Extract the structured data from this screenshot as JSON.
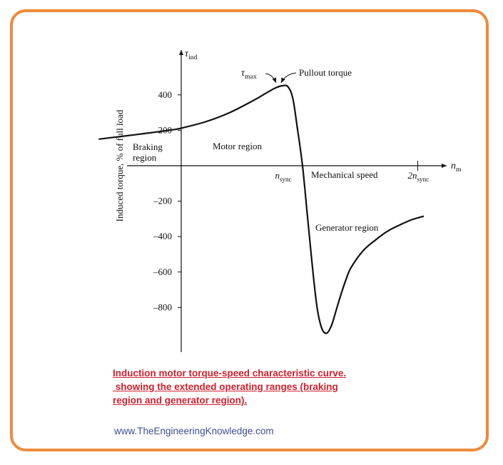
{
  "chart_data": {
    "type": "line",
    "title": "",
    "xlabel": "Mechanical speed",
    "x_axis_symbol": "n",
    "x_axis_symbol_sub": "m",
    "ylabel": "Induced torque, % of full load",
    "y_axis_symbol": "τ",
    "y_axis_symbol_sub": "ind",
    "x_unit": "n_sync",
    "xlim": [
      -0.68,
      2.0
    ],
    "ylim": [
      -1060,
      650
    ],
    "y_ticks": [
      {
        "value": 400,
        "label": "400"
      },
      {
        "value": 200,
        "label": "200"
      },
      {
        "value": -200,
        "label": "–200"
      },
      {
        "value": -400,
        "label": "–400"
      },
      {
        "value": -600,
        "label": "–600"
      },
      {
        "value": -800,
        "label": "–800"
      }
    ],
    "x_ticks": [
      {
        "value": 0.95,
        "label": "n",
        "sub": "sync"
      },
      {
        "value": 1.95,
        "label": "2n",
        "sub": "sync"
      }
    ],
    "series": [
      {
        "x": [
          -0.68,
          -0.5,
          -0.3,
          -0.1,
          0.0,
          0.2,
          0.4,
          0.6,
          0.7,
          0.78,
          0.84,
          0.88,
          0.92,
          0.96,
          1.0,
          1.04,
          1.08,
          1.12,
          1.16,
          1.2,
          1.24,
          1.28,
          1.32,
          1.36,
          1.4,
          1.5,
          1.6,
          1.7,
          1.8,
          1.9,
          2.0
        ],
        "y": [
          150,
          165,
          182,
          200,
          212,
          248,
          300,
          370,
          410,
          440,
          452,
          446,
          380,
          200,
          0,
          -280,
          -560,
          -800,
          -920,
          -945,
          -900,
          -810,
          -720,
          -640,
          -575,
          -480,
          -420,
          -370,
          -335,
          -305,
          -285
        ]
      }
    ],
    "annotations": [
      {
        "text": "τ",
        "sub": "max"
      },
      {
        "text": "Pullout torque"
      },
      {
        "text": "Braking",
        "line2": "region"
      },
      {
        "text": "Motor region"
      },
      {
        "text": "Generator region"
      }
    ],
    "grid": false,
    "legend": "none"
  },
  "caption": {
    "line1": "Induction motor torque-speed characteristic curve.",
    "line2": " showing the extended operating ranges (braking",
    "line3": "region and generator region)."
  },
  "website": "www.TheEngineeringKnowledge.com",
  "colors": {
    "frame": "#ee8a3a",
    "caption": "#d3202c",
    "website": "#3a4f96",
    "curve": "#111111"
  }
}
